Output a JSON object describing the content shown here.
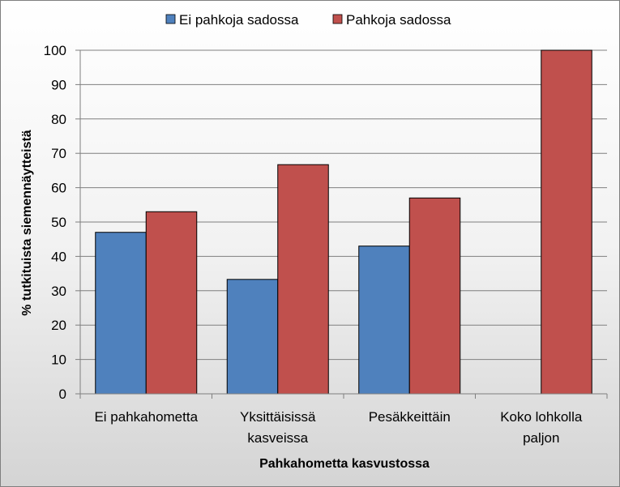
{
  "chart_data": {
    "type": "bar",
    "categories": [
      [
        "Ei pahkahometta"
      ],
      [
        "Yksittäisissä",
        "kasveissa"
      ],
      [
        "Pesäkkeittäin"
      ],
      [
        "Koko lohkolla",
        "paljon"
      ]
    ],
    "series": [
      {
        "name": "Ei pahkoja sadossa",
        "values": [
          47,
          33.3,
          43,
          0
        ],
        "color": "#4f81bd"
      },
      {
        "name": "Pahkoja sadossa",
        "values": [
          53,
          66.7,
          57,
          100
        ],
        "color": "#c0504d"
      }
    ],
    "xlabel": "Pahkahometta kasvustossa",
    "ylabel": "% tutkituista siemennäytteistä",
    "ylim": [
      0,
      100
    ],
    "yticks": [
      0,
      10,
      20,
      30,
      40,
      50,
      60,
      70,
      80,
      90,
      100
    ],
    "grid": true,
    "legend_position": "top"
  }
}
